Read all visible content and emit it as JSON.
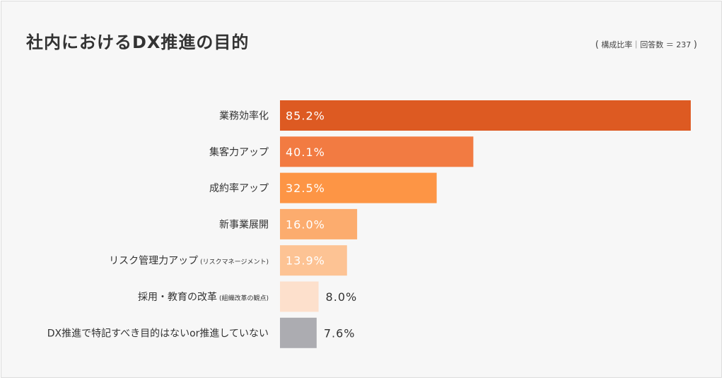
{
  "title": "社内におけるDX推進の目的",
  "note": {
    "open": "(",
    "text": "構成比率｜回答数 ＝ 237",
    "close": ")"
  },
  "chart_data": {
    "type": "bar",
    "orientation": "horizontal",
    "title": "社内におけるDX推進の目的",
    "xlim": [
      0,
      85.2
    ],
    "grid": false,
    "categories": [
      {
        "main": "業務効率化",
        "sub": ""
      },
      {
        "main": "集客力アップ",
        "sub": ""
      },
      {
        "main": "成約率アップ",
        "sub": ""
      },
      {
        "main": "新事業展開",
        "sub": ""
      },
      {
        "main": "リスク管理力アップ",
        "sub": "(リスクマネージメント)"
      },
      {
        "main": "採用・教育の改革",
        "sub": "(組織改革の観点)"
      },
      {
        "main": "DX推進で特記すべき目的はないor推進していない",
        "sub": ""
      }
    ],
    "values": [
      85.2,
      40.1,
      32.5,
      16.0,
      13.9,
      8.0,
      7.6
    ],
    "value_labels": [
      "85.2%",
      "40.1%",
      "32.5%",
      "16.0%",
      "13.9%",
      "8.0%",
      "7.6%"
    ],
    "colors": [
      "#dd5a22",
      "#f27b42",
      "#fd9545",
      "#fcac6e",
      "#fdc394",
      "#fde0cc",
      "#acacb1"
    ],
    "label_inside": [
      true,
      true,
      true,
      true,
      true,
      false,
      false
    ]
  }
}
